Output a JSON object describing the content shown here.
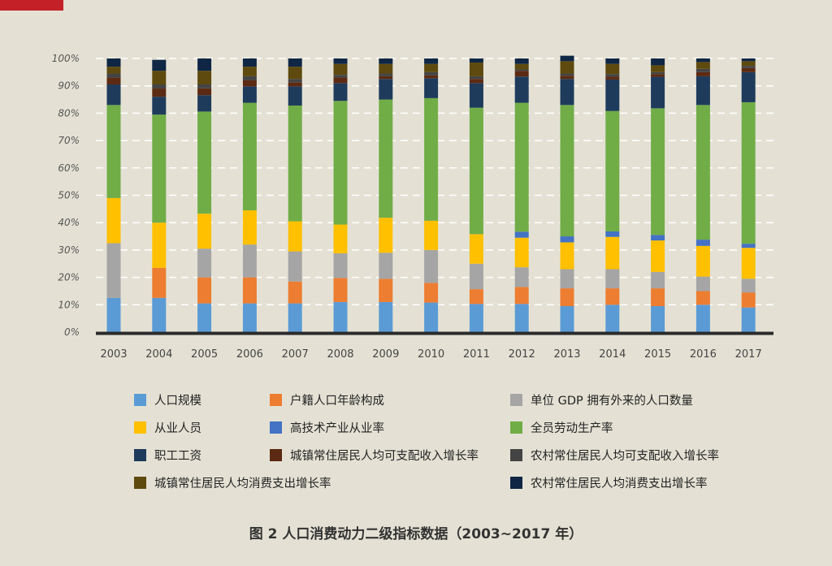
{
  "chart_data": {
    "type": "bar",
    "stacked": true,
    "title": "",
    "xlabel": "",
    "ylabel": "",
    "ylim": [
      0,
      100
    ],
    "y_ticks": [
      "0%",
      "10%",
      "20%",
      "30%",
      "40%",
      "50%",
      "60%",
      "70%",
      "80%",
      "90%",
      "100%"
    ],
    "grid": true,
    "categories": [
      "2003",
      "2004",
      "2005",
      "2006",
      "2007",
      "2008",
      "2009",
      "2010",
      "2011",
      "2012",
      "2013",
      "2014",
      "2015",
      "2016",
      "2017"
    ],
    "series": [
      {
        "name": "人口规模",
        "color": "#5b9bd5",
        "values": [
          12.5,
          12.5,
          10.5,
          10.5,
          10.5,
          11,
          11,
          10.8,
          10.3,
          10.3,
          9.5,
          10,
          9.5,
          10,
          9
        ]
      },
      {
        "name": "户籍人口年龄构成",
        "color": "#ed7d31",
        "values": [
          0,
          11,
          9.5,
          9.5,
          8,
          8.8,
          8.5,
          7.2,
          5.4,
          6.2,
          6.5,
          6,
          6.5,
          5,
          5.5
        ]
      },
      {
        "name": "单位 GDP 拥有外来的人口数量",
        "color": "#a5a5a5",
        "values": [
          20,
          0,
          10.5,
          12,
          11,
          9,
          9.5,
          12,
          9.3,
          7.2,
          7,
          7,
          6,
          5.3,
          5
        ]
      },
      {
        "name": "从业人员",
        "color": "#ffc000",
        "values": [
          16.5,
          16.5,
          12.8,
          12.5,
          11,
          10.5,
          12.8,
          10.7,
          10.8,
          10.8,
          9.8,
          11.8,
          11.5,
          11.2,
          11.3
        ]
      },
      {
        "name": "高技术产业从业率",
        "color": "#4472c4",
        "values": [
          0,
          0,
          0,
          0,
          0,
          0,
          0,
          0,
          0,
          2.2,
          2.2,
          2,
          2,
          2.3,
          1.5
        ]
      },
      {
        "name": "全员劳动生产率",
        "color": "#70ad47",
        "values": [
          34,
          39.5,
          37.3,
          39.3,
          42.3,
          45.2,
          43.2,
          44.8,
          46.2,
          47.1,
          48,
          44,
          46.3,
          49.2,
          51.7
        ]
      },
      {
        "name": "职工工资",
        "color": "#1f3b5c",
        "values": [
          7.5,
          6.5,
          6,
          6,
          7,
          6.5,
          7.5,
          7.3,
          9,
          9.6,
          9.5,
          11.5,
          11.5,
          10.5,
          11
        ]
      },
      {
        "name": "城镇常住居民人均可支配收入增长率",
        "color": "#5c2a12",
        "values": [
          2.5,
          3,
          2.5,
          2.2,
          1.5,
          2,
          1,
          1,
          1.5,
          2.1,
          1.2,
          1,
          1,
          1.5,
          1.5
        ]
      },
      {
        "name": "农村常住居民人均可支配收入增长率",
        "color": "#444444",
        "values": [
          1.5,
          1.5,
          1.4,
          1.5,
          1.2,
          1,
          1,
          1.2,
          1,
          0.5,
          0.8,
          1,
          0.7,
          1.2,
          0.8
        ]
      },
      {
        "name": "城镇常住居民人均消费支出增长率",
        "color": "#5e4a0e",
        "values": [
          2.5,
          5,
          5,
          3.5,
          4.5,
          4,
          3.5,
          3,
          5,
          2,
          4.5,
          3.7,
          2.5,
          2.5,
          1.7
        ]
      },
      {
        "name": "农村常住居民人均消费支出增长率",
        "color": "#0f2644",
        "values": [
          3,
          4,
          4.5,
          3,
          3,
          2,
          2,
          2,
          1.5,
          2,
          2,
          2,
          2.5,
          1.3,
          1
        ]
      }
    ]
  },
  "caption": "图 2  人口消费动力二级指标数据（2003~2017 年）"
}
